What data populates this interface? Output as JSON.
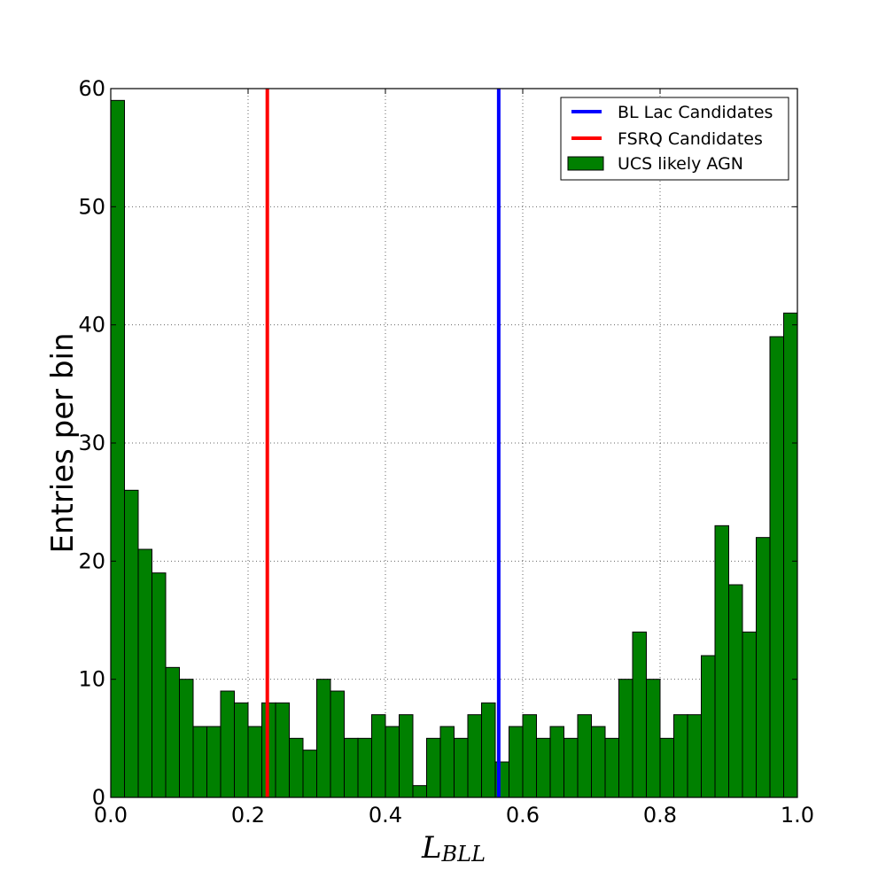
{
  "chart_data": {
    "type": "bar",
    "ylabel": "Entries per bin",
    "xlabel": {
      "base": "L",
      "subscript": "BLL"
    },
    "xlim": [
      0,
      1
    ],
    "ylim": [
      0,
      60
    ],
    "xticks": [
      "0.0",
      "0.2",
      "0.4",
      "0.6",
      "0.8",
      "1.0"
    ],
    "yticks": [
      "0",
      "10",
      "20",
      "30",
      "40",
      "50",
      "60"
    ],
    "grid": true,
    "legend_position": "top-right",
    "bin_width": 0.02,
    "series": [
      {
        "name": "UCS likely AGN",
        "color": "#008000",
        "values": [
          59,
          26,
          21,
          19,
          11,
          10,
          6,
          6,
          9,
          8,
          6,
          8,
          8,
          5,
          4,
          10,
          9,
          5,
          5,
          7,
          6,
          7,
          1,
          5,
          6,
          5,
          7,
          8,
          3,
          6,
          7,
          5,
          6,
          5,
          7,
          6,
          5,
          10,
          14,
          10,
          5,
          7,
          7,
          12,
          23,
          18,
          14,
          22,
          39,
          41
        ]
      }
    ],
    "vlines": [
      {
        "name": "BL Lac Candidates",
        "x": 0.565,
        "color": "#0000ff"
      },
      {
        "name": "FSRQ Candidates",
        "x": 0.228,
        "color": "#ff0000"
      }
    ]
  }
}
